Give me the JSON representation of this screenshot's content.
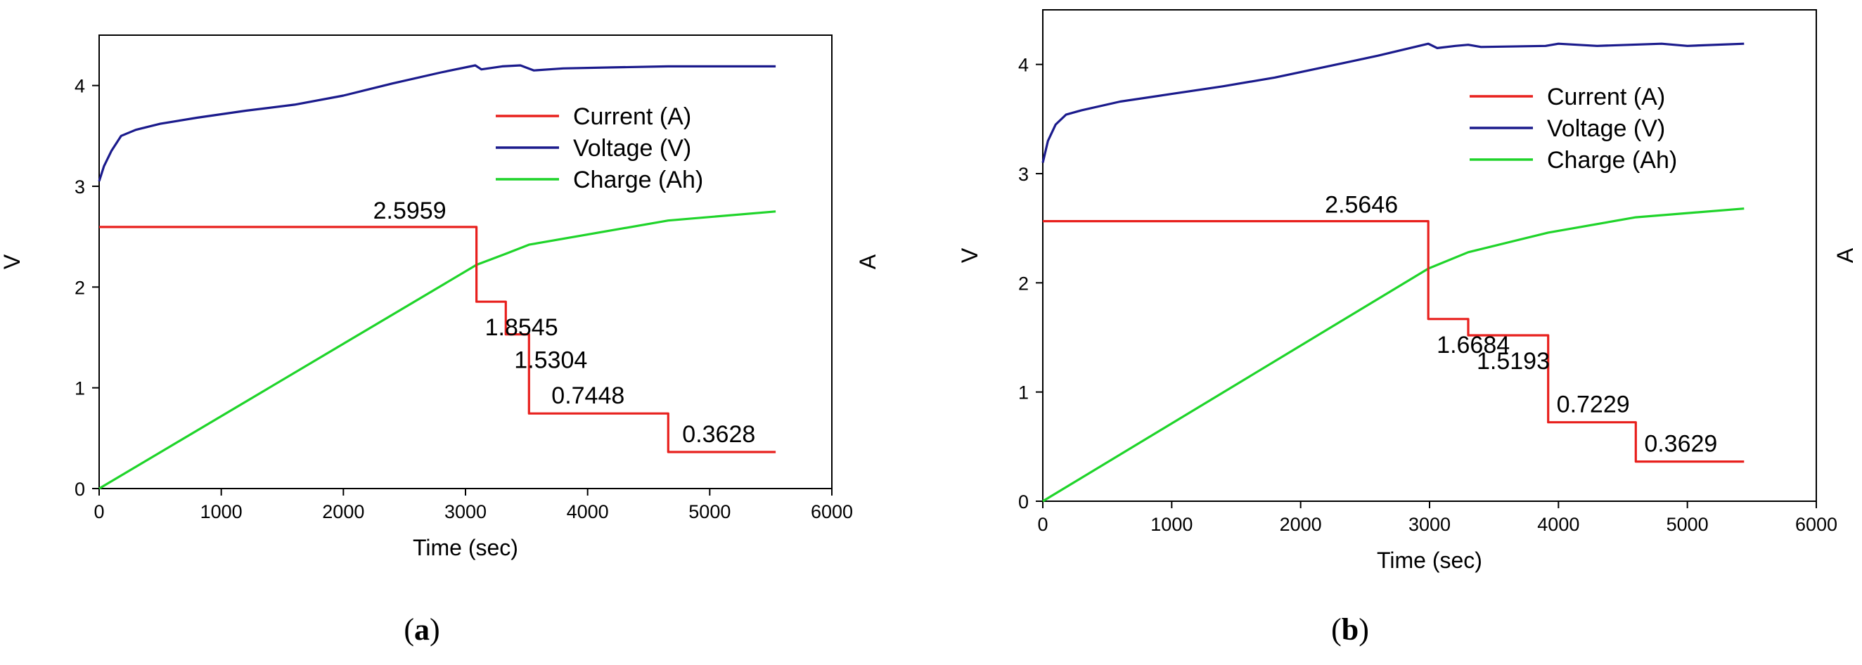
{
  "chart_data": [
    {
      "type": "line",
      "panel_label": "a",
      "xlabel": "Time (sec)",
      "ylabel_left": "V",
      "ylabel_right": "A",
      "xlim": [
        0,
        6000
      ],
      "ylim": [
        0,
        4.5
      ],
      "x_ticks": [
        0,
        1000,
        2000,
        3000,
        4000,
        5000,
        6000
      ],
      "y_ticks": [
        0,
        1,
        2,
        3,
        4
      ],
      "legend_position": "top-right",
      "series": [
        {
          "name": "Current (A)",
          "color": "#e8201d",
          "points": [
            [
              0,
              2.5959
            ],
            [
              3090,
              2.5959
            ],
            [
              3090,
              1.8545
            ],
            [
              3330,
              1.8545
            ],
            [
              3330,
              1.5304
            ],
            [
              3520,
              1.5304
            ],
            [
              3520,
              0.7448
            ],
            [
              4660,
              0.7448
            ],
            [
              4660,
              0.3628
            ],
            [
              5540,
              0.3628
            ]
          ]
        },
        {
          "name": "Voltage (V)",
          "color": "#1a1a8c",
          "points": [
            [
              0,
              3.05
            ],
            [
              40,
              3.2
            ],
            [
              100,
              3.35
            ],
            [
              180,
              3.5
            ],
            [
              300,
              3.56
            ],
            [
              500,
              3.62
            ],
            [
              800,
              3.68
            ],
            [
              1200,
              3.75
            ],
            [
              1600,
              3.81
            ],
            [
              2000,
              3.9
            ],
            [
              2400,
              4.02
            ],
            [
              2800,
              4.13
            ],
            [
              3080,
              4.2
            ],
            [
              3130,
              4.16
            ],
            [
              3300,
              4.19
            ],
            [
              3450,
              4.2
            ],
            [
              3560,
              4.15
            ],
            [
              3800,
              4.17
            ],
            [
              4200,
              4.18
            ],
            [
              4660,
              4.19
            ],
            [
              5000,
              4.19
            ],
            [
              5540,
              4.19
            ]
          ]
        },
        {
          "name": "Charge (Ah)",
          "color": "#1fd42a",
          "points": [
            [
              0,
              0
            ],
            [
              3090,
              2.22
            ],
            [
              3330,
              2.33
            ],
            [
              3520,
              2.42
            ],
            [
              4660,
              2.66
            ],
            [
              5540,
              2.75
            ]
          ]
        }
      ],
      "annotations": [
        "2.5959",
        "1.8545",
        "1.5304",
        "0.7448",
        "0.3628"
      ]
    },
    {
      "type": "line",
      "panel_label": "b",
      "xlabel": "Time (sec)",
      "ylabel_left": "V",
      "ylabel_right": "A",
      "xlim": [
        0,
        6000
      ],
      "ylim": [
        0,
        4.5
      ],
      "x_ticks": [
        0,
        1000,
        2000,
        3000,
        4000,
        5000,
        6000
      ],
      "y_ticks": [
        0,
        1,
        2,
        3,
        4
      ],
      "legend_position": "top-right",
      "series": [
        {
          "name": "Current (A)",
          "color": "#e8201d",
          "points": [
            [
              0,
              2.5646
            ],
            [
              2990,
              2.5646
            ],
            [
              2990,
              1.6684
            ],
            [
              3300,
              1.6684
            ],
            [
              3300,
              1.5193
            ],
            [
              3920,
              1.5193
            ],
            [
              3920,
              0.7229
            ],
            [
              4600,
              0.7229
            ],
            [
              4600,
              0.3629
            ],
            [
              5440,
              0.3629
            ]
          ]
        },
        {
          "name": "Voltage (V)",
          "color": "#1a1a8c",
          "points": [
            [
              0,
              3.1
            ],
            [
              40,
              3.3
            ],
            [
              100,
              3.45
            ],
            [
              180,
              3.54
            ],
            [
              300,
              3.58
            ],
            [
              600,
              3.66
            ],
            [
              1000,
              3.73
            ],
            [
              1400,
              3.8
            ],
            [
              1800,
              3.88
            ],
            [
              2200,
              3.98
            ],
            [
              2600,
              4.08
            ],
            [
              2990,
              4.19
            ],
            [
              3060,
              4.15
            ],
            [
              3200,
              4.17
            ],
            [
              3300,
              4.18
            ],
            [
              3400,
              4.16
            ],
            [
              3900,
              4.17
            ],
            [
              4000,
              4.19
            ],
            [
              4300,
              4.17
            ],
            [
              4800,
              4.19
            ],
            [
              5000,
              4.17
            ],
            [
              5440,
              4.19
            ]
          ]
        },
        {
          "name": "Charge (Ah)",
          "color": "#1fd42a",
          "points": [
            [
              0,
              0
            ],
            [
              2990,
              2.13
            ],
            [
              3300,
              2.28
            ],
            [
              3920,
              2.46
            ],
            [
              4600,
              2.6
            ],
            [
              5440,
              2.68
            ]
          ]
        }
      ],
      "annotations": [
        "2.5646",
        "1.6684",
        "1.5193",
        "0.7229",
        "0.3629"
      ]
    }
  ]
}
